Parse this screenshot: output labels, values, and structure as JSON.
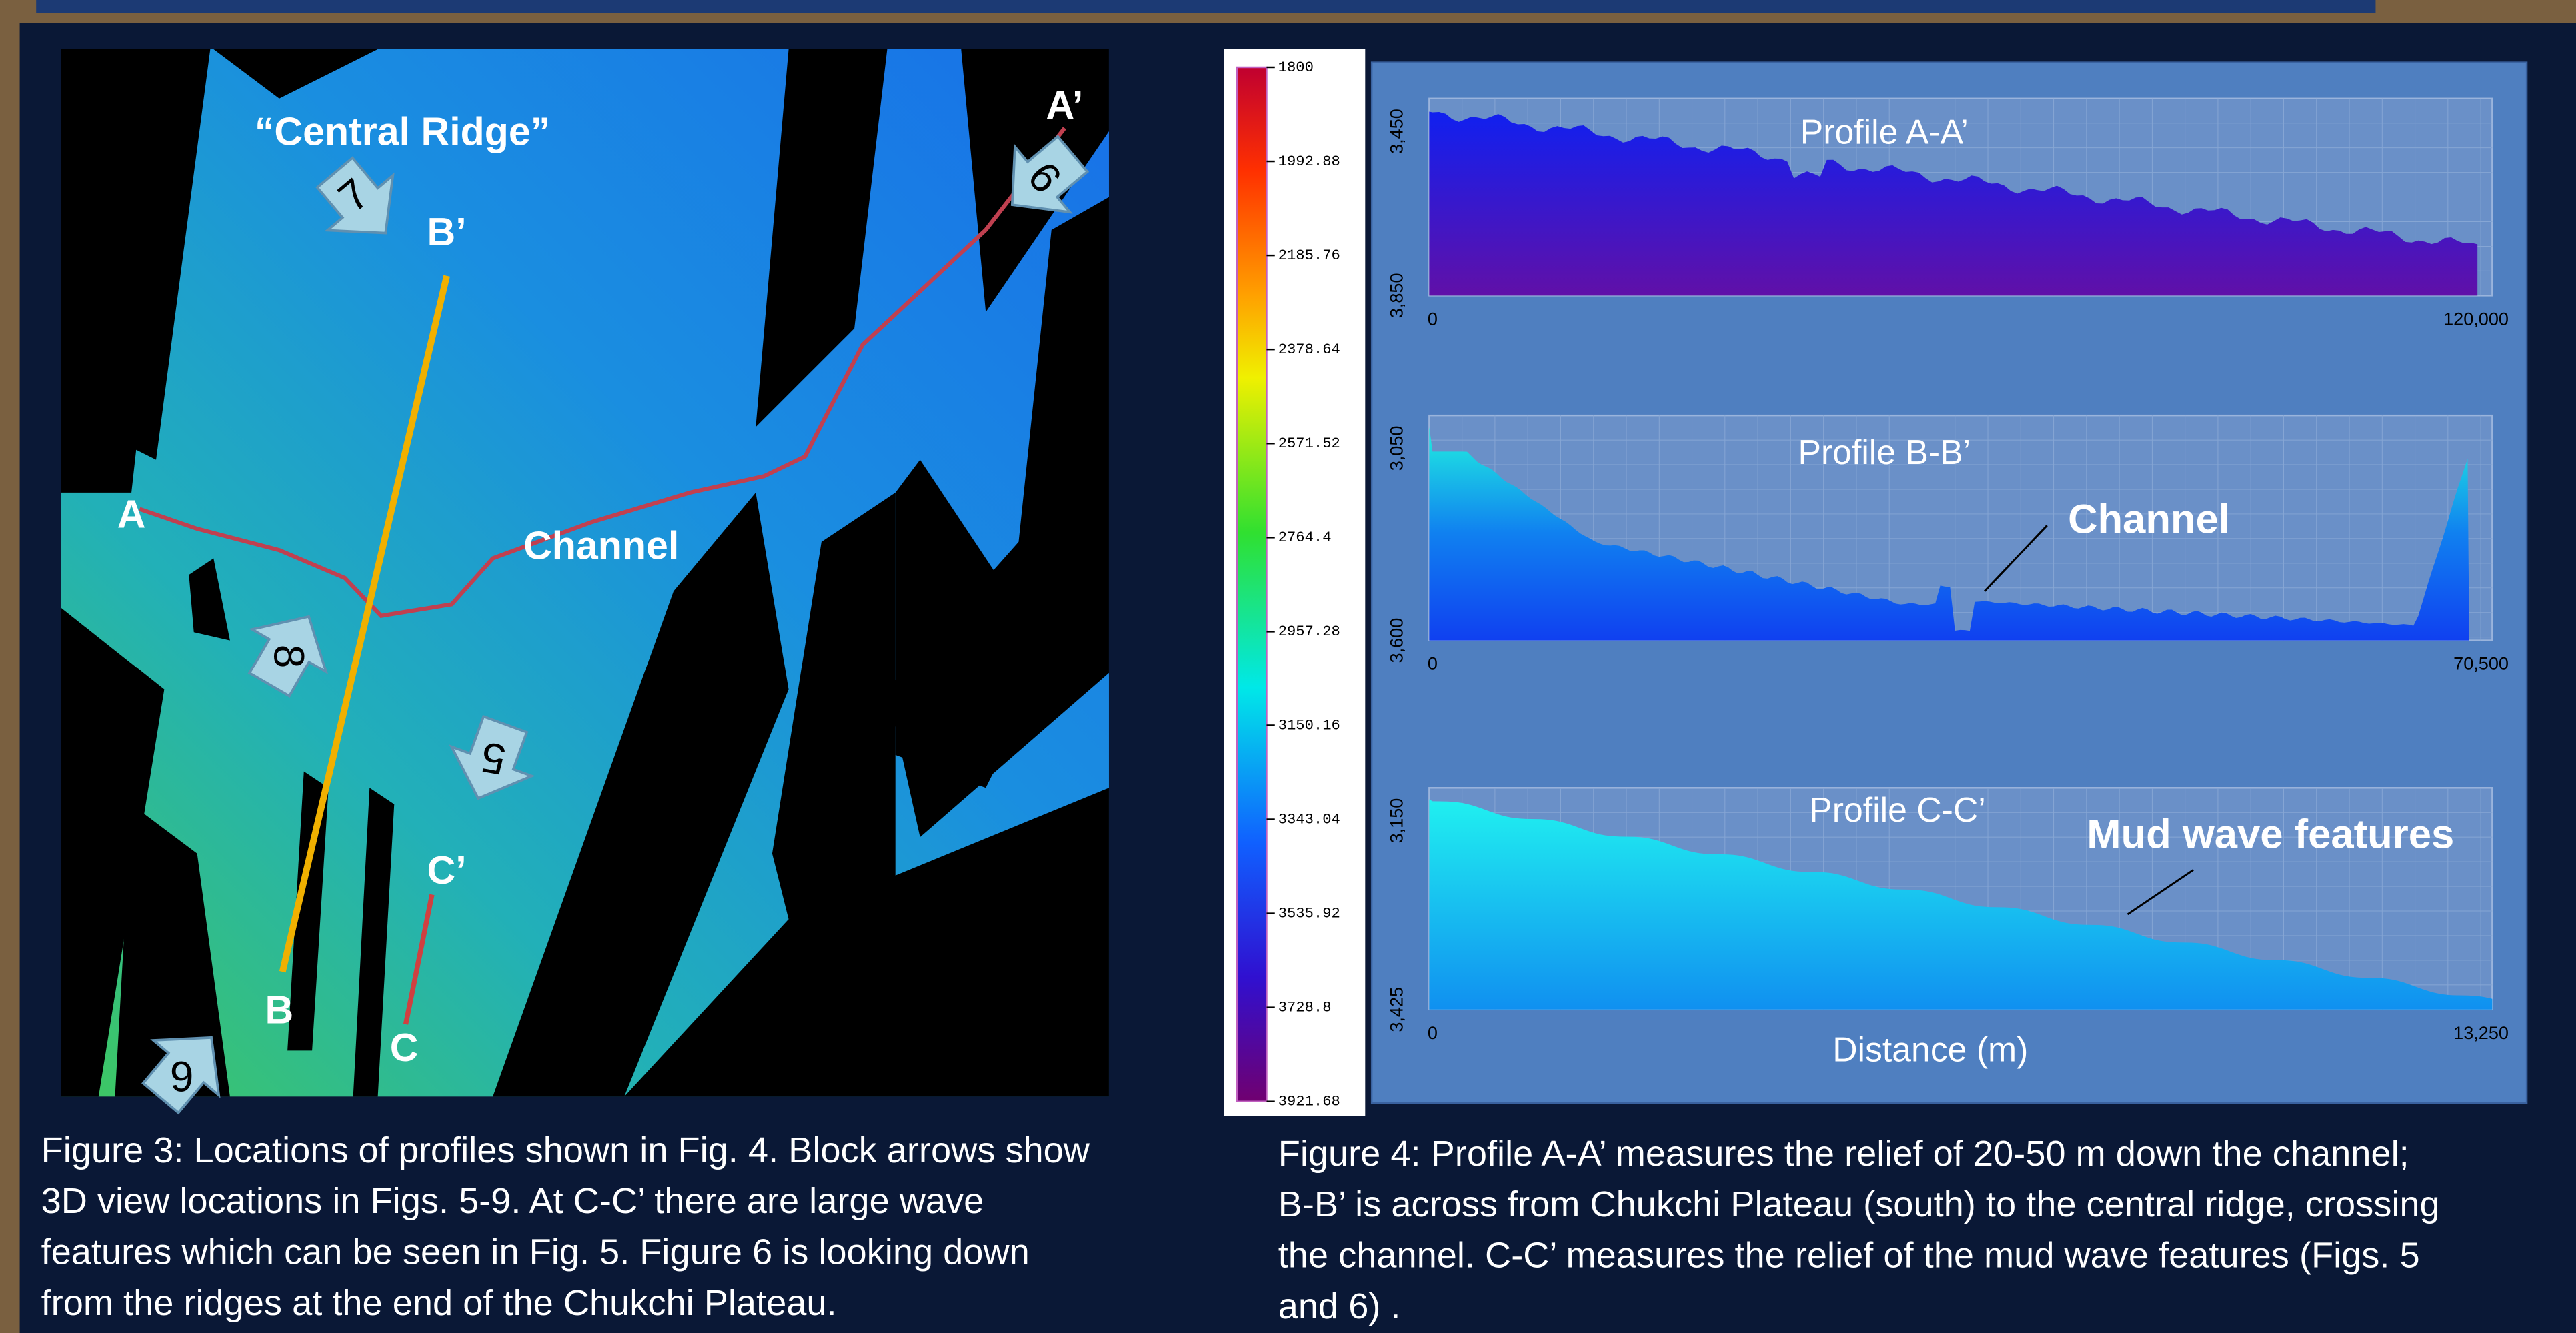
{
  "map": {
    "labels": [
      "“Central Ridge”",
      "A’",
      "B’",
      "A",
      "Channel",
      "C’",
      "B",
      "C"
    ],
    "arrows": [
      "7",
      "9",
      "8",
      "5",
      "6"
    ]
  },
  "colorbar": {
    "ticks": [
      "1800",
      "1992.88",
      "2185.76",
      "2378.64",
      "2571.52",
      "2764.4",
      "2957.28",
      "3150.16",
      "3343.04",
      "3535.92",
      "3728.8",
      "3921.68"
    ]
  },
  "profiles": [
    {
      "title": "Profile A-A’",
      "y_ticks": [
        "3,450",
        "3,850"
      ],
      "x_ticks": [
        "0",
        "120,000"
      ]
    },
    {
      "title": "Profile B-B’",
      "y_ticks": [
        "3,050",
        "3,600"
      ],
      "x_ticks": [
        "0",
        "70,500"
      ],
      "annotation": "Channel"
    },
    {
      "title": "Profile C-C’",
      "y_ticks": [
        "3,150",
        "3,425"
      ],
      "x_ticks": [
        "0",
        "13,250"
      ],
      "annotation": "Mud wave features"
    }
  ],
  "x_axis_label": "Distance (m)",
  "caption_left": [
    "Figure 3: Locations of profiles shown in Fig. 4. Block arrows show",
    "3D view locations in Figs. 5-9.  At C-C’ there are large wave",
    "features which can be seen in Fig. 5. Figure 6 is looking down",
    "from the ridges at the end of the Chukchi Plateau."
  ],
  "caption_right": [
    "Figure 4: Profile A-A’ measures the relief of 20-50 m down the channel;",
    "B-B’ is across from Chukchi Plateau (south) to the central ridge, crossing",
    "the channel. C-C’ measures the relief of the mud wave features (Figs. 5",
    "and 6) ."
  ]
}
